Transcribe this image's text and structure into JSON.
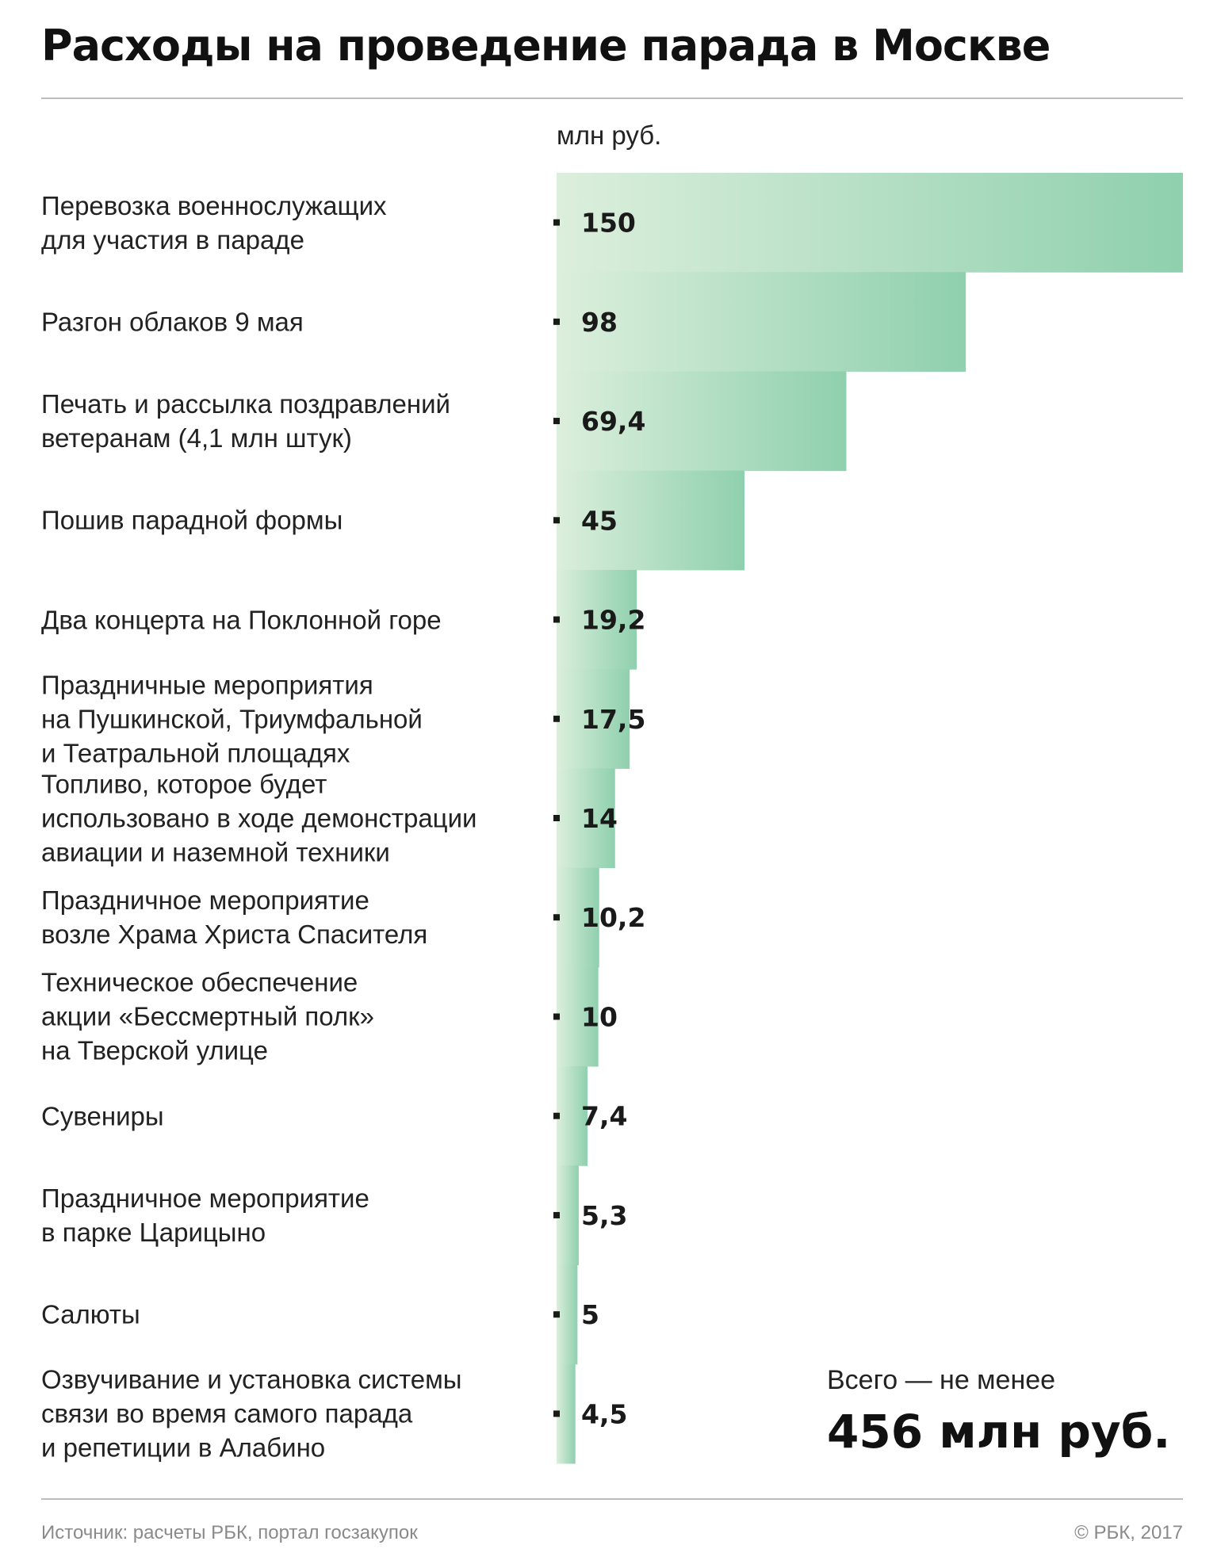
{
  "title": "Расходы на проведение парада в Москве",
  "colors": {
    "bar_light": "#dcefdc",
    "bar_dark": "#8fd0ae",
    "text": "#222222",
    "muted": "#8a8a8a",
    "rule": "#bdbdbd"
  },
  "chart_data": {
    "type": "bar",
    "orientation": "horizontal",
    "unit": "млн руб.",
    "xlim": [
      0,
      150
    ],
    "grid": false,
    "categories": [
      [
        "Перевозка военнослужащих",
        "для участия в параде"
      ],
      [
        "Разгон облаков 9 мая"
      ],
      [
        "Печать и рассылка поздравлений",
        "ветеранам (4,1 млн штук)"
      ],
      [
        "Пошив парадной формы"
      ],
      [
        "Два концерта на Поклонной горе"
      ],
      [
        "Праздничные мероприятия",
        "на Пушкинской, Триумфальной",
        "и Театральной площадях"
      ],
      [
        "Топливо, которое будет",
        "использовано в ходе демонстрации",
        "авиации и наземной техники"
      ],
      [
        "Праздничное мероприятие",
        "возле Храма Христа Спасителя"
      ],
      [
        "Техническое обеспечение",
        "акции «Бессмертный полк»",
        "на Тверской улице"
      ],
      [
        "Сувениры"
      ],
      [
        "Праздничное мероприятие",
        "в парке Царицыно"
      ],
      [
        "Салюты"
      ],
      [
        "Озвучивание и установка системы",
        "связи во время самого парада",
        "и репетиции в Алабино"
      ]
    ],
    "values": [
      150,
      98,
      69.4,
      45,
      19.2,
      17.5,
      14,
      10.2,
      10,
      7.4,
      5.3,
      5,
      4.5
    ],
    "value_labels": [
      "150",
      "98",
      "69,4",
      "45",
      "19,2",
      "17,5",
      "14",
      "10,2",
      "10",
      "7,4",
      "5,3",
      "5",
      "4,5"
    ]
  },
  "total": {
    "caption": "Всего — не менее",
    "value": "456 млн руб."
  },
  "footer": {
    "source": "Источник: расчеты РБК, портал госзакупок",
    "copyright": "© РБК, 2017"
  }
}
